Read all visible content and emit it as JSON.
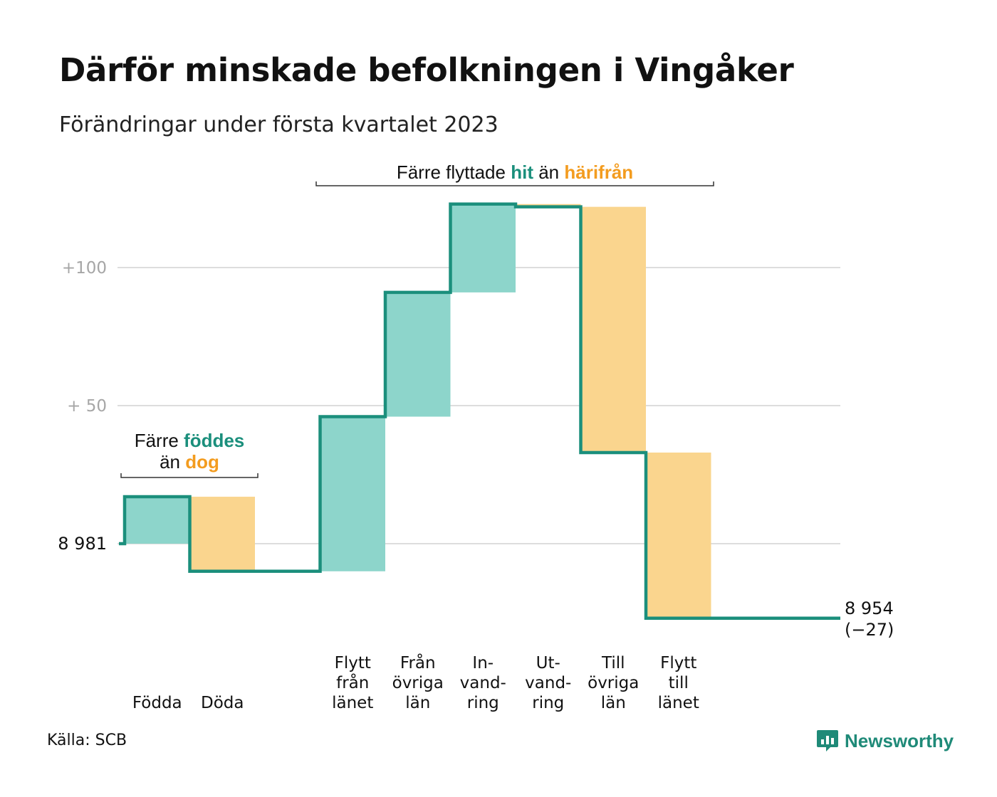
{
  "title": "Därför minskade befolkningen i Vingåker",
  "subtitle": "Förändringar under första kvartalet 2023",
  "source": "Källa: SCB",
  "logo": {
    "text": "Newsworthy",
    "icon": "newsworthy-logo-icon"
  },
  "colors": {
    "increase_fill": "#8dd5cb",
    "decrease_fill": "#fad58e",
    "line": "#1b8f7c",
    "accent_teal": "#1b8f7c",
    "accent_orange": "#f39c1f",
    "grid": "#dddddd",
    "tick_text": "#a6a6a6"
  },
  "chart_data": {
    "type": "waterfall",
    "start_value": 8981,
    "end_value": 8954,
    "y_ticks": [
      {
        "value": 100,
        "label": "+100"
      },
      {
        "value": 50,
        "label": "+ 50"
      },
      {
        "value": 0,
        "label": "8 981"
      }
    ],
    "ylim": [
      -30,
      120
    ],
    "categories": [
      {
        "label": [
          "Födda"
        ],
        "delta": 17,
        "kind": "increase"
      },
      {
        "label": [
          "Döda"
        ],
        "delta": -27,
        "kind": "decrease"
      },
      {
        "label": [],
        "delta": 0,
        "kind": "none"
      },
      {
        "label": [
          "Flytt",
          "från",
          "länet"
        ],
        "delta": 56,
        "kind": "increase"
      },
      {
        "label": [
          "Från",
          "övriga",
          "län"
        ],
        "delta": 45,
        "kind": "increase"
      },
      {
        "label": [
          "In-",
          "vand-",
          "ring"
        ],
        "delta": 32,
        "kind": "increase"
      },
      {
        "label": [
          "Ut-",
          "vand-",
          "ring"
        ],
        "delta": -1,
        "kind": "decrease"
      },
      {
        "label": [
          "Till",
          "övriga",
          "län"
        ],
        "delta": -89,
        "kind": "decrease"
      },
      {
        "label": [
          "Flytt",
          "till",
          "länet"
        ],
        "delta": -60,
        "kind": "decrease"
      }
    ],
    "end_label": [
      "8 954",
      "(−27)"
    ],
    "annotations": [
      {
        "span": [
          0,
          1
        ],
        "lines": [
          [
            {
              "text": "Färre ",
              "style": "plain"
            },
            {
              "text": "föddes",
              "style": "teal"
            }
          ],
          [
            {
              "text": "än ",
              "style": "plain"
            },
            {
              "text": "dog",
              "style": "orange"
            }
          ]
        ]
      },
      {
        "span": [
          3,
          8
        ],
        "lines": [
          [
            {
              "text": "Färre flyttade ",
              "style": "plain"
            },
            {
              "text": "hit",
              "style": "teal"
            },
            {
              "text": " än ",
              "style": "plain"
            },
            {
              "text": "härifrån",
              "style": "orange"
            }
          ]
        ]
      }
    ]
  }
}
